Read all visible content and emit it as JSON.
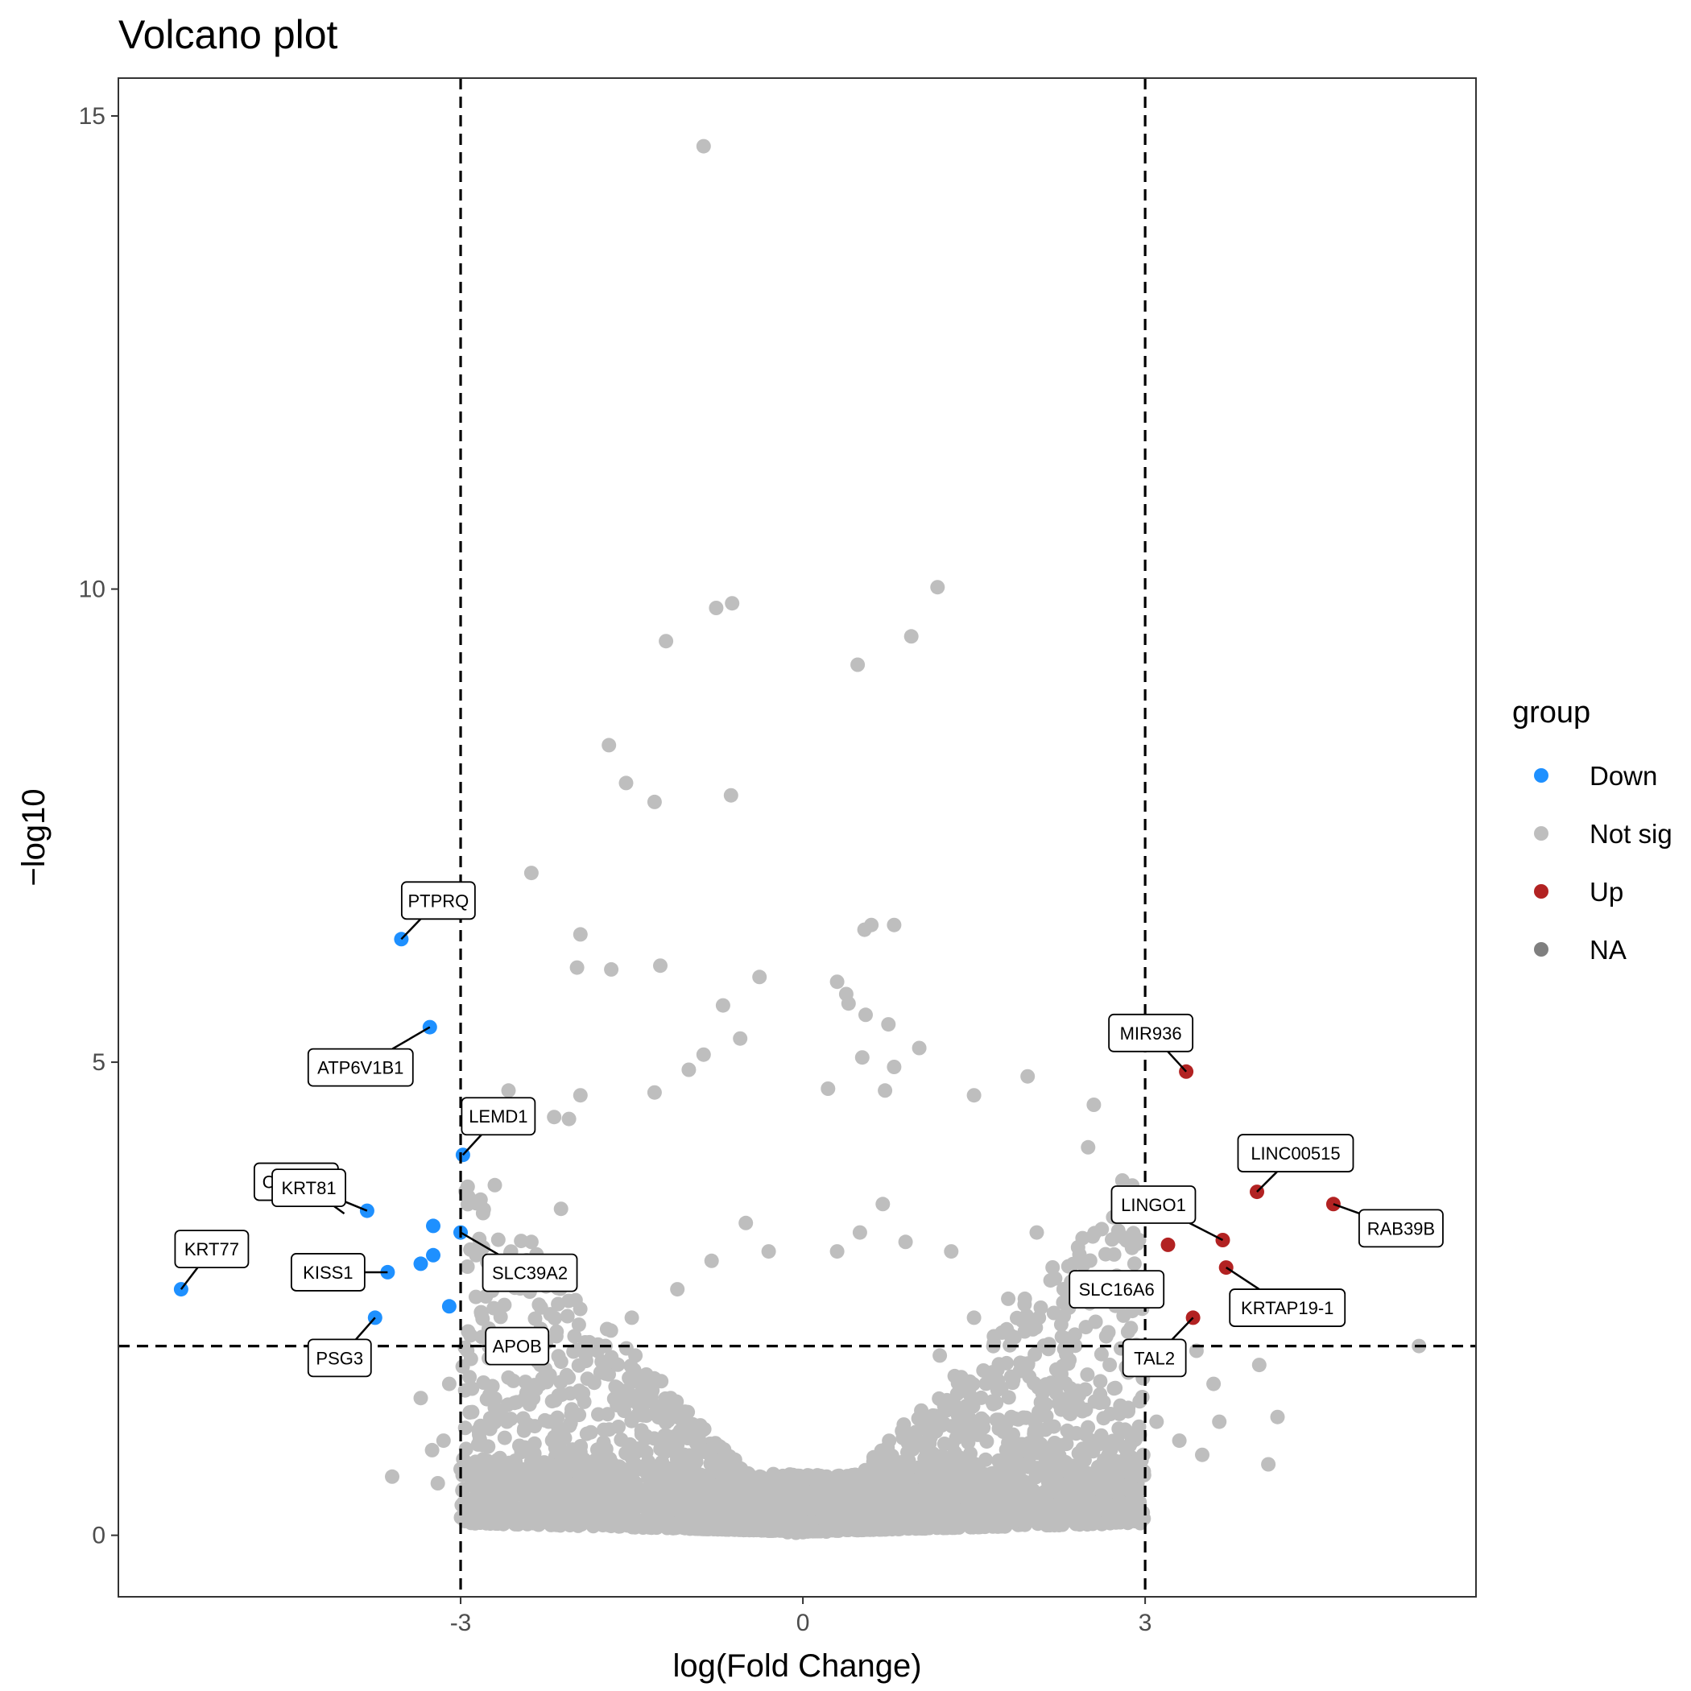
{
  "chart_data": {
    "type": "scatter",
    "title": "Volcano plot",
    "xlabel": "log(Fold Change)",
    "ylabel": "−log10",
    "xlim": [
      -6.0,
      5.9
    ],
    "ylim": [
      -0.65,
      15.4
    ],
    "x_ticks": [
      {
        "value": -3,
        "label": "-3"
      },
      {
        "value": 0,
        "label": "0"
      },
      {
        "value": 3,
        "label": "3"
      }
    ],
    "y_ticks": [
      {
        "value": 0,
        "label": "0"
      },
      {
        "value": 5,
        "label": "5"
      },
      {
        "value": 10,
        "label": "10"
      },
      {
        "value": 15,
        "label": "15"
      }
    ],
    "grid": false,
    "thresholds": {
      "x": [
        -3,
        3
      ],
      "y": 2.0
    },
    "legend": {
      "title": "group",
      "placement": "right",
      "entries": [
        {
          "label": "Down",
          "color": "#1e90ff"
        },
        {
          "label": "Not sig",
          "color": "#bebebe"
        },
        {
          "label": "Up",
          "color": "#b22222"
        },
        {
          "label": "NA",
          "color": "#7f7f7f"
        }
      ]
    },
    "series": [
      {
        "name": "Down",
        "color": "#1e90ff",
        "points": [
          {
            "x": -3.52,
            "y": 6.3,
            "label": "PTPRQ"
          },
          {
            "x": -3.27,
            "y": 5.37,
            "label": "ATP6V1B1"
          },
          {
            "x": -2.98,
            "y": 4.02,
            "label": "LEMD1"
          },
          {
            "x": -3.82,
            "y": 3.43,
            "label": "CLDN19"
          },
          {
            "x": -3.24,
            "y": 3.27
          },
          {
            "x": -3.0,
            "y": 3.2,
            "label": "SLC39A2"
          },
          {
            "x": -3.24,
            "y": 2.96
          },
          {
            "x": -3.35,
            "y": 2.87
          },
          {
            "x": -3.64,
            "y": 2.78,
            "label": "KISS1"
          },
          {
            "x": -5.45,
            "y": 2.6,
            "label": "KRT77"
          },
          {
            "x": -3.1,
            "y": 2.42
          },
          {
            "x": -3.75,
            "y": 2.3,
            "label": "PSG3"
          }
        ]
      },
      {
        "name": "Not sig",
        "color": "#bebebe",
        "points": [
          {
            "x": -0.87,
            "y": 14.68
          },
          {
            "x": 1.18,
            "y": 10.02
          },
          {
            "x": -0.62,
            "y": 9.85
          },
          {
            "x": -0.76,
            "y": 9.8
          },
          {
            "x": -1.2,
            "y": 9.45
          },
          {
            "x": 0.95,
            "y": 9.5
          },
          {
            "x": 0.48,
            "y": 9.2
          },
          {
            "x": -1.7,
            "y": 8.35
          },
          {
            "x": -1.55,
            "y": 7.95
          },
          {
            "x": -1.3,
            "y": 7.75
          },
          {
            "x": -0.63,
            "y": 7.82
          },
          {
            "x": -2.38,
            "y": 7.0
          },
          {
            "x": 0.6,
            "y": 6.45
          },
          {
            "x": 0.8,
            "y": 6.45
          },
          {
            "x": 0.54,
            "y": 6.4
          },
          {
            "x": -1.95,
            "y": 6.35
          },
          {
            "x": -1.98,
            "y": 6.0
          },
          {
            "x": -1.68,
            "y": 5.98
          },
          {
            "x": -1.25,
            "y": 6.02
          },
          {
            "x": -0.38,
            "y": 5.9
          },
          {
            "x": 0.3,
            "y": 5.85
          },
          {
            "x": 0.38,
            "y": 5.72
          },
          {
            "x": 0.4,
            "y": 5.62
          },
          {
            "x": -0.7,
            "y": 5.6
          },
          {
            "x": 0.55,
            "y": 5.5
          },
          {
            "x": 0.75,
            "y": 5.4
          },
          {
            "x": -0.55,
            "y": 5.25
          },
          {
            "x": 1.02,
            "y": 5.15
          },
          {
            "x": 0.52,
            "y": 5.05
          },
          {
            "x": 0.8,
            "y": 4.95
          },
          {
            "x": 1.97,
            "y": 4.85
          },
          {
            "x": -0.87,
            "y": 5.08
          },
          {
            "x": -1.0,
            "y": 4.92
          },
          {
            "x": 0.72,
            "y": 4.7
          },
          {
            "x": 0.22,
            "y": 4.72
          },
          {
            "x": -2.58,
            "y": 4.7
          },
          {
            "x": -1.95,
            "y": 4.65
          },
          {
            "x": -1.3,
            "y": 4.68
          },
          {
            "x": 1.5,
            "y": 4.65
          },
          {
            "x": 2.55,
            "y": 4.55
          },
          {
            "x": 2.5,
            "y": 4.1
          },
          {
            "x": -2.18,
            "y": 4.42
          },
          {
            "x": -2.05,
            "y": 4.4
          },
          {
            "x": -2.7,
            "y": 3.7
          },
          {
            "x": -2.12,
            "y": 3.45
          },
          {
            "x": -2.38,
            "y": 3.1
          },
          {
            "x": 2.8,
            "y": 3.75
          },
          {
            "x": 2.05,
            "y": 3.2
          },
          {
            "x": 1.3,
            "y": 3.0
          },
          {
            "x": 2.3,
            "y": 2.6
          },
          {
            "x": 1.8,
            "y": 2.5
          },
          {
            "x": 2.2,
            "y": 2.35
          },
          {
            "x": 2.48,
            "y": 2.2
          },
          {
            "x": 2.85,
            "y": 2.15
          },
          {
            "x": 3.45,
            "y": 1.95
          },
          {
            "x": 4.0,
            "y": 1.8
          },
          {
            "x": 5.4,
            "y": 2.0
          },
          {
            "x": 3.6,
            "y": 1.6
          },
          {
            "x": 3.65,
            "y": 1.2
          },
          {
            "x": 4.16,
            "y": 1.25
          },
          {
            "x": 4.08,
            "y": 0.75
          },
          {
            "x": 3.1,
            "y": 1.2
          },
          {
            "x": 3.3,
            "y": 1.0
          },
          {
            "x": 3.5,
            "y": 0.85
          },
          {
            "x": -3.1,
            "y": 1.6
          },
          {
            "x": -3.35,
            "y": 1.45
          },
          {
            "x": -3.15,
            "y": 1.0
          },
          {
            "x": -3.25,
            "y": 0.9
          },
          {
            "x": -3.6,
            "y": 0.62
          },
          {
            "x": -3.2,
            "y": 0.55
          },
          {
            "x": -3.0,
            "y": 0.7
          },
          {
            "x": -2.9,
            "y": 1.55
          },
          {
            "x": -2.7,
            "y": 1.35
          },
          {
            "x": -1.8,
            "y": 1.95
          },
          {
            "x": -1.5,
            "y": 2.3
          },
          {
            "x": -1.1,
            "y": 2.6
          },
          {
            "x": -0.8,
            "y": 2.9
          },
          {
            "x": -0.5,
            "y": 3.3
          },
          {
            "x": -0.3,
            "y": 3.0
          },
          {
            "x": 0.3,
            "y": 3.0
          },
          {
            "x": 0.5,
            "y": 3.2
          },
          {
            "x": 0.7,
            "y": 3.5
          },
          {
            "x": 0.9,
            "y": 3.1
          },
          {
            "x": 1.5,
            "y": 2.3
          },
          {
            "x": -2.3,
            "y": 1.8
          },
          {
            "x": 2.1,
            "y": 1.5
          },
          {
            "x": 2.6,
            "y": 1.4
          },
          {
            "x": 1.2,
            "y": 1.9
          }
        ]
      },
      {
        "name": "Up",
        "color": "#b22222",
        "points": [
          {
            "x": 3.36,
            "y": 4.9,
            "label": "MIR936"
          },
          {
            "x": 3.98,
            "y": 3.63,
            "label": "LINC00515"
          },
          {
            "x": 4.65,
            "y": 3.5,
            "label": "RAB39B"
          },
          {
            "x": 3.68,
            "y": 3.12,
            "label": "LINGO1"
          },
          {
            "x": 3.2,
            "y": 3.07
          },
          {
            "x": 3.71,
            "y": 2.83,
            "label": "KRTAP19-1"
          },
          {
            "x": 3.42,
            "y": 2.3,
            "label": "TAL2"
          }
        ]
      }
    ],
    "cloud_labels": [
      {
        "x": 2.75,
        "y": 2.6,
        "label": "SLC16A6"
      },
      {
        "x": -2.9,
        "y": 2.0,
        "label": "APOB"
      },
      {
        "x": -4.02,
        "y": 3.4,
        "label": "KRT81"
      }
    ]
  }
}
